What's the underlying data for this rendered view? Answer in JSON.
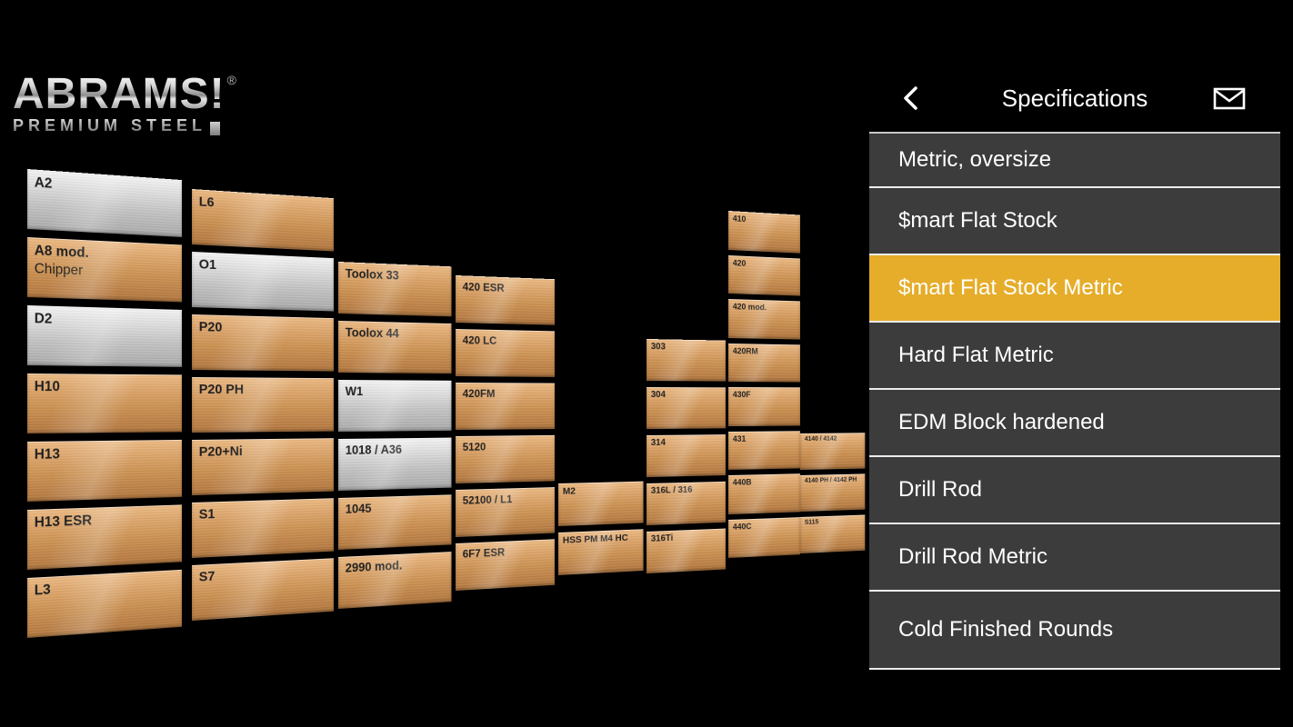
{
  "logo": {
    "brand": "ABRAMS!",
    "registered": "®",
    "subtitle": "PREMIUM STEEL"
  },
  "header": {
    "title": "Specifications",
    "back_icon": "chevron-left",
    "mail_icon": "envelope"
  },
  "menu": {
    "highlight_color": "#e5ad2a",
    "items": [
      {
        "label": "Metric, oversize",
        "selected": false
      },
      {
        "label": "$mart Flat Stock",
        "selected": false
      },
      {
        "label": "$mart Flat Stock Metric",
        "selected": true
      },
      {
        "label": "Hard Flat Metric",
        "selected": false
      },
      {
        "label": "EDM Block hardened",
        "selected": false
      },
      {
        "label": "Drill Rod",
        "selected": false
      },
      {
        "label": "Drill Rod Metric",
        "selected": false
      },
      {
        "label": "Cold Finished Rounds",
        "selected": false
      }
    ]
  },
  "grid": {
    "columns": [
      {
        "tiles": [
          {
            "label": "A2",
            "finish": "silver"
          },
          {
            "label": "A8 mod.",
            "sub": "Chipper",
            "finish": "copper"
          },
          {
            "label": "D2",
            "finish": "silver"
          },
          {
            "label": "H10",
            "finish": "copper"
          },
          {
            "label": "H13",
            "finish": "copper"
          },
          {
            "label": "H13 ESR",
            "finish": "copper"
          },
          {
            "label": "L3",
            "finish": "copper"
          }
        ]
      },
      {
        "tiles": [
          {
            "label": "L6",
            "finish": "copper"
          },
          {
            "label": "O1",
            "finish": "silver"
          },
          {
            "label": "P20",
            "finish": "copper"
          },
          {
            "label": "P20 PH",
            "finish": "copper"
          },
          {
            "label": "P20+Ni",
            "finish": "copper"
          },
          {
            "label": "S1",
            "finish": "copper"
          },
          {
            "label": "S7",
            "finish": "copper"
          }
        ]
      },
      {
        "tiles": [
          {
            "label": "Toolox 33",
            "finish": "copper"
          },
          {
            "label": "Toolox 44",
            "finish": "copper"
          },
          {
            "label": "W1",
            "finish": "silver"
          },
          {
            "label": "1018 / A36",
            "finish": "silver"
          },
          {
            "label": "1045",
            "finish": "copper"
          },
          {
            "label": "2990 mod.",
            "finish": "copper"
          }
        ]
      },
      {
        "tiles": [
          {
            "label": "420 ESR",
            "finish": "copper"
          },
          {
            "label": "420 LC",
            "finish": "copper"
          },
          {
            "label": "420FM",
            "finish": "copper"
          },
          {
            "label": "5120",
            "finish": "copper"
          },
          {
            "label": "52100 / L1",
            "finish": "copper"
          },
          {
            "label": "6F7 ESR",
            "finish": "copper"
          }
        ]
      },
      {
        "tiles": [
          {
            "label": "M2",
            "finish": "copper"
          },
          {
            "label": "HSS PM M4 HC",
            "finish": "copper"
          }
        ]
      },
      {
        "tiles": [
          {
            "label": "303",
            "finish": "copper"
          },
          {
            "label": "304",
            "finish": "copper"
          },
          {
            "label": "314",
            "finish": "copper"
          },
          {
            "label": "316L / 316",
            "finish": "copper"
          },
          {
            "label": "316Ti",
            "finish": "copper"
          }
        ]
      },
      {
        "tiles": [
          {
            "label": "410",
            "finish": "copper"
          },
          {
            "label": "420",
            "finish": "copper"
          },
          {
            "label": "420 mod.",
            "finish": "copper"
          },
          {
            "label": "420RM",
            "finish": "copper"
          },
          {
            "label": "430F",
            "finish": "copper"
          },
          {
            "label": "431",
            "finish": "copper"
          },
          {
            "label": "440B",
            "finish": "copper"
          },
          {
            "label": "440C",
            "finish": "copper"
          }
        ]
      },
      {
        "tiles": [
          {
            "label": "4140 / 4142",
            "finish": "copper"
          },
          {
            "label": "4140 PH / 4142 PH",
            "finish": "copper"
          },
          {
            "label": "S115",
            "finish": "copper"
          }
        ]
      }
    ]
  }
}
